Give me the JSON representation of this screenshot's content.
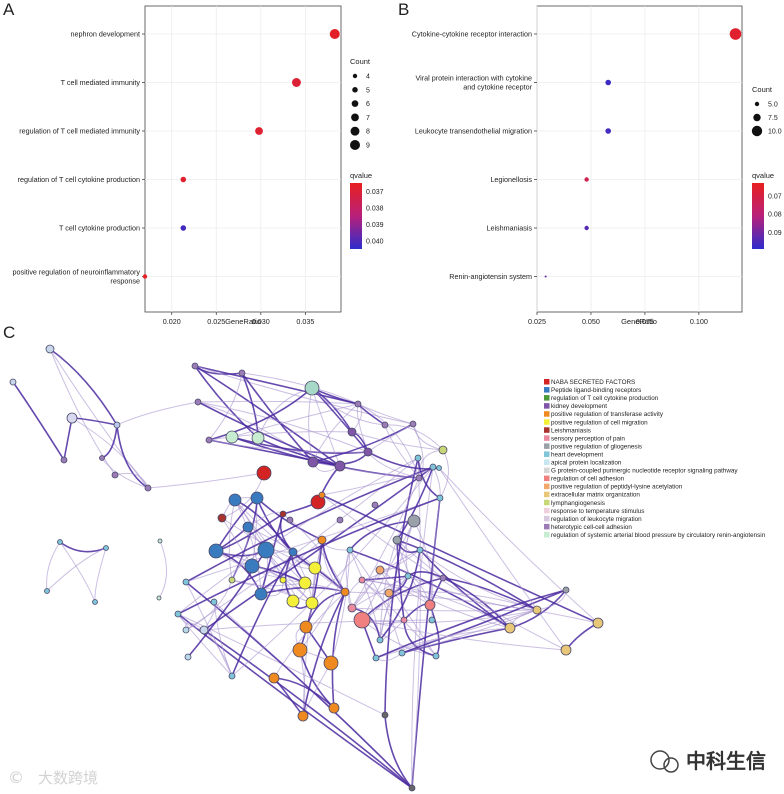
{
  "panel_labels": {
    "a": "A",
    "b": "B",
    "c": "C"
  },
  "chart_data": [
    {
      "type": "scatter",
      "panel": "A",
      "xlabel": "GeneRatio",
      "xlim": [
        0.017,
        0.039
      ],
      "xticks": [
        0.02,
        0.025,
        0.03,
        0.035
      ],
      "xtick_labels": [
        "0.020",
        "0.025",
        "0.030",
        "0.035"
      ],
      "categories": [
        "nephron development",
        "T cell mediated immunity",
        "regulation of T cell mediated immunity",
        "regulation of T cell cytokine production",
        "T cell cytokine production",
        "positive regulation of neuroinflammatory response"
      ],
      "x": [
        0.0383,
        0.034,
        0.0298,
        0.0213,
        0.0213,
        0.017
      ],
      "count": [
        9,
        8,
        7,
        5,
        5,
        4
      ],
      "qvalue": [
        0.0367,
        0.037,
        0.0369,
        0.0368,
        0.0402,
        0.0366
      ],
      "size_legend": {
        "title": "Count",
        "values": [
          4,
          5,
          6,
          7,
          8,
          9
        ],
        "labels": [
          "4",
          "5",
          "6",
          "7",
          "8",
          "9"
        ]
      },
      "color_legend": {
        "title": "qvalue",
        "range": [
          0.0365,
          0.0405
        ],
        "ticks": [
          0.037,
          0.038,
          0.039,
          0.04
        ],
        "tick_labels": [
          "0.037",
          "0.038",
          "0.039",
          "0.040"
        ]
      },
      "colors": {
        "low": "#e8201f",
        "high": "#2d2ccc"
      },
      "grid": true
    },
    {
      "type": "scatter",
      "panel": "B",
      "xlabel": "GeneRatio",
      "xlim": [
        0.025,
        0.12
      ],
      "xticks": [
        0.025,
        0.05,
        0.075,
        0.1
      ],
      "xtick_labels": [
        "0.025",
        "0.050",
        "0.075",
        "0.100"
      ],
      "categories": [
        "Cytokine-cytokine receptor interaction",
        "Viral protein interaction with cytokine and cytokine receptor",
        "Leukocyte transendothelial migration",
        "Legionellosis",
        "Leishmaniasis",
        "Renin-angiotensin system"
      ],
      "category_lines": [
        [
          "Cytokine-cytokine receptor interaction"
        ],
        [
          "Viral protein interaction with cytokine",
          "and cytokine receptor"
        ],
        [
          "Leukocyte transendothelial migration"
        ],
        [
          "Legionellosis"
        ],
        [
          "Leishmaniasis"
        ],
        [
          "Renin-angiotensin system"
        ]
      ],
      "x": [
        0.117,
        0.058,
        0.058,
        0.048,
        0.048,
        0.029
      ],
      "count": [
        11,
        6,
        6,
        5,
        5,
        3
      ],
      "qvalue": [
        0.066,
        0.097,
        0.096,
        0.072,
        0.094,
        0.092
      ],
      "size_legend": {
        "title": "Count",
        "values": [
          5,
          7.5,
          10
        ],
        "labels": [
          "5.0",
          "7.5",
          "10.0"
        ]
      },
      "color_legend": {
        "title": "qvalue",
        "range": [
          0.063,
          0.099
        ],
        "ticks": [
          0.07,
          0.08,
          0.09
        ],
        "tick_labels": [
          "0.07",
          "0.08",
          "0.09"
        ]
      },
      "colors": {
        "low": "#e8201f",
        "high": "#2d2ccc"
      },
      "grid": true
    }
  ],
  "network": {
    "legend": [
      {
        "label": "NABA SECRETED FACTORS",
        "color": "#d42323"
      },
      {
        "label": "Peptide ligand-binding receptors",
        "color": "#3a7bbf"
      },
      {
        "label": "regulation of T cell cytokine production",
        "color": "#4c9a3c"
      },
      {
        "label": "kidney development",
        "color": "#7f55a8"
      },
      {
        "label": "positive regulation of transferase activity",
        "color": "#ef8a20"
      },
      {
        "label": "positive regulation of cell migration",
        "color": "#f4f03a"
      },
      {
        "label": "Leishmaniasis",
        "color": "#a8322c"
      },
      {
        "label": "sensory perception of pain",
        "color": "#e98aa0"
      },
      {
        "label": "positive regulation of gliogenesis",
        "color": "#9aa1a8"
      },
      {
        "label": "heart development",
        "color": "#7fc4d8"
      },
      {
        "label": "apical protein localization",
        "color": "#c8e6f0"
      },
      {
        "label": "G protein-coupled purinergic nucleotide receptor signaling pathway",
        "color": "#d6d6d6"
      },
      {
        "label": "regulation of cell adhesion",
        "color": "#f08080"
      },
      {
        "label": "positive regulation of peptidyl-lysine acetylation",
        "color": "#f2a86a"
      },
      {
        "label": "extracellular matrix organization",
        "color": "#e8c878"
      },
      {
        "label": "lymphangiogenesis",
        "color": "#c8d878"
      },
      {
        "label": "response to temperature stimulus",
        "color": "#f0d0dc"
      },
      {
        "label": "regulation of leukocyte migration",
        "color": "#d8c8e0"
      },
      {
        "label": "heterotypic cell-cell adhesion",
        "color": "#9b7cb6"
      },
      {
        "label": "regulation of systemic arterial blood pressure by circulatory renin-angiotensin",
        "color": "#c8ecd0"
      }
    ],
    "edge_colors": {
      "strong": "#4b2aa0",
      "weak": "#a994cf"
    }
  },
  "watermarks": {
    "left": "大数跨境",
    "right": "中科生信"
  }
}
